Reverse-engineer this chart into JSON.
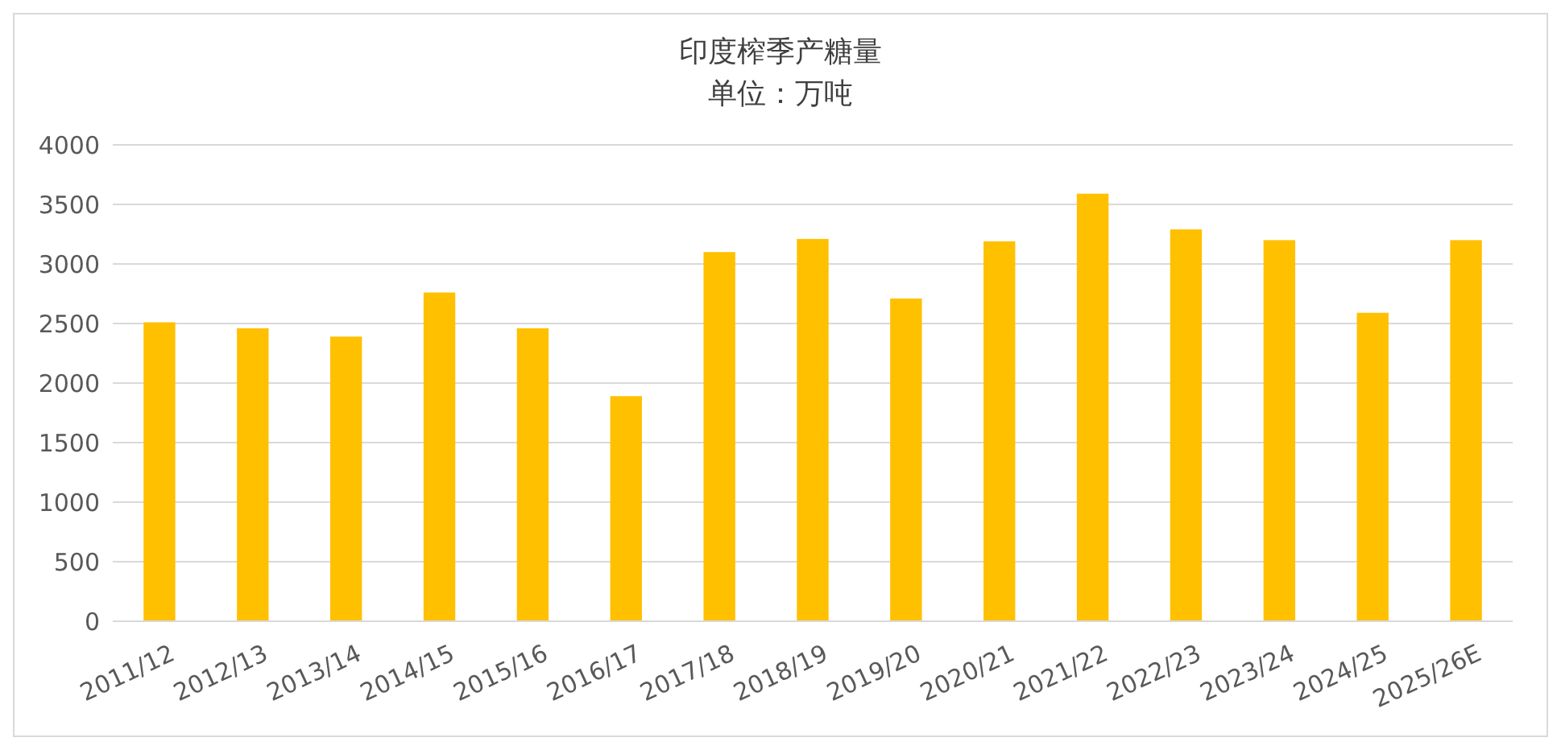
{
  "chart_data": {
    "type": "bar",
    "title": "印度榨季产糖量",
    "subtitle": "单位：万吨",
    "categories": [
      "2011/12",
      "2012/13",
      "2013/14",
      "2014/15",
      "2015/16",
      "2016/17",
      "2017/18",
      "2018/19",
      "2019/20",
      "2020/21",
      "2021/22",
      "2022/23",
      "2023/24",
      "2024/25",
      "2025/26E"
    ],
    "values": [
      2510,
      2460,
      2390,
      2760,
      2460,
      1890,
      3100,
      3210,
      2710,
      3190,
      3590,
      3290,
      3200,
      2590,
      3200
    ],
    "color": "#ffc000",
    "ylim": [
      0,
      4000
    ],
    "yticks": [
      0,
      500,
      1000,
      1500,
      2000,
      2500,
      3000,
      3500,
      4000
    ],
    "grid": "y"
  }
}
